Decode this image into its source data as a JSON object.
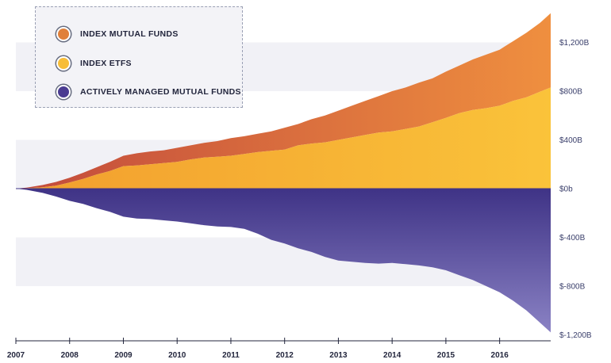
{
  "chart_data": {
    "type": "area",
    "title": "",
    "xlabel": "",
    "ylabel": "",
    "x_tick_labels": [
      "2007",
      "2008",
      "2009",
      "2010",
      "2011",
      "2012",
      "2013",
      "2014",
      "2015",
      "2016"
    ],
    "y_tick_labels": [
      "$1,200B",
      "$800B",
      "$400B",
      "$0b",
      "$-400B",
      "$-800B",
      "$-1,200B"
    ],
    "ylim": [
      -1200,
      1450
    ],
    "xlim": [
      2007,
      2016.95
    ],
    "grid": "horizontal bands",
    "legend_position": "top-left",
    "x": [
      2007,
      2007.2,
      2007.5,
      2007.75,
      2008,
      2008.25,
      2008.5,
      2008.75,
      2009,
      2009.25,
      2009.5,
      2009.75,
      2010,
      2010.25,
      2010.5,
      2010.75,
      2011,
      2011.25,
      2011.5,
      2011.75,
      2012,
      2012.25,
      2012.5,
      2012.75,
      2013,
      2013.25,
      2013.5,
      2013.75,
      2014,
      2014.25,
      2014.5,
      2014.75,
      2015,
      2015.25,
      2015.5,
      2015.75,
      2016,
      2016.25,
      2016.5,
      2016.75,
      2016.95
    ],
    "series": [
      {
        "name": "INDEX ETFS",
        "color": "#f7b833",
        "values": [
          0,
          3,
          12,
          25,
          50,
          80,
          115,
          145,
          185,
          190,
          200,
          210,
          220,
          240,
          255,
          262,
          270,
          285,
          300,
          310,
          320,
          355,
          370,
          380,
          400,
          420,
          440,
          460,
          470,
          490,
          510,
          545,
          580,
          620,
          645,
          660,
          680,
          720,
          750,
          795,
          830
        ]
      },
      {
        "name": "INDEX MUTUAL FUNDS",
        "color": "#e37c3e",
        "values": [
          0,
          8,
          30,
          55,
          90,
          130,
          175,
          220,
          270,
          290,
          305,
          315,
          335,
          355,
          375,
          390,
          415,
          430,
          450,
          470,
          500,
          530,
          570,
          600,
          640,
          680,
          720,
          760,
          800,
          830,
          870,
          905,
          960,
          1010,
          1060,
          1100,
          1140,
          1210,
          1280,
          1360,
          1440
        ]
      },
      {
        "name": "ACTIVELY MANAGED MUTUAL FUNDS",
        "color": "#4f3f95",
        "values": [
          0,
          -10,
          -35,
          -65,
          -100,
          -125,
          -160,
          -190,
          -230,
          -245,
          -250,
          -260,
          -270,
          -285,
          -300,
          -310,
          -315,
          -330,
          -370,
          -420,
          -450,
          -490,
          -520,
          -560,
          -590,
          -600,
          -610,
          -615,
          -610,
          -620,
          -630,
          -645,
          -670,
          -710,
          -750,
          -800,
          -850,
          -920,
          -1000,
          -1100,
          -1180
        ]
      }
    ]
  }
}
